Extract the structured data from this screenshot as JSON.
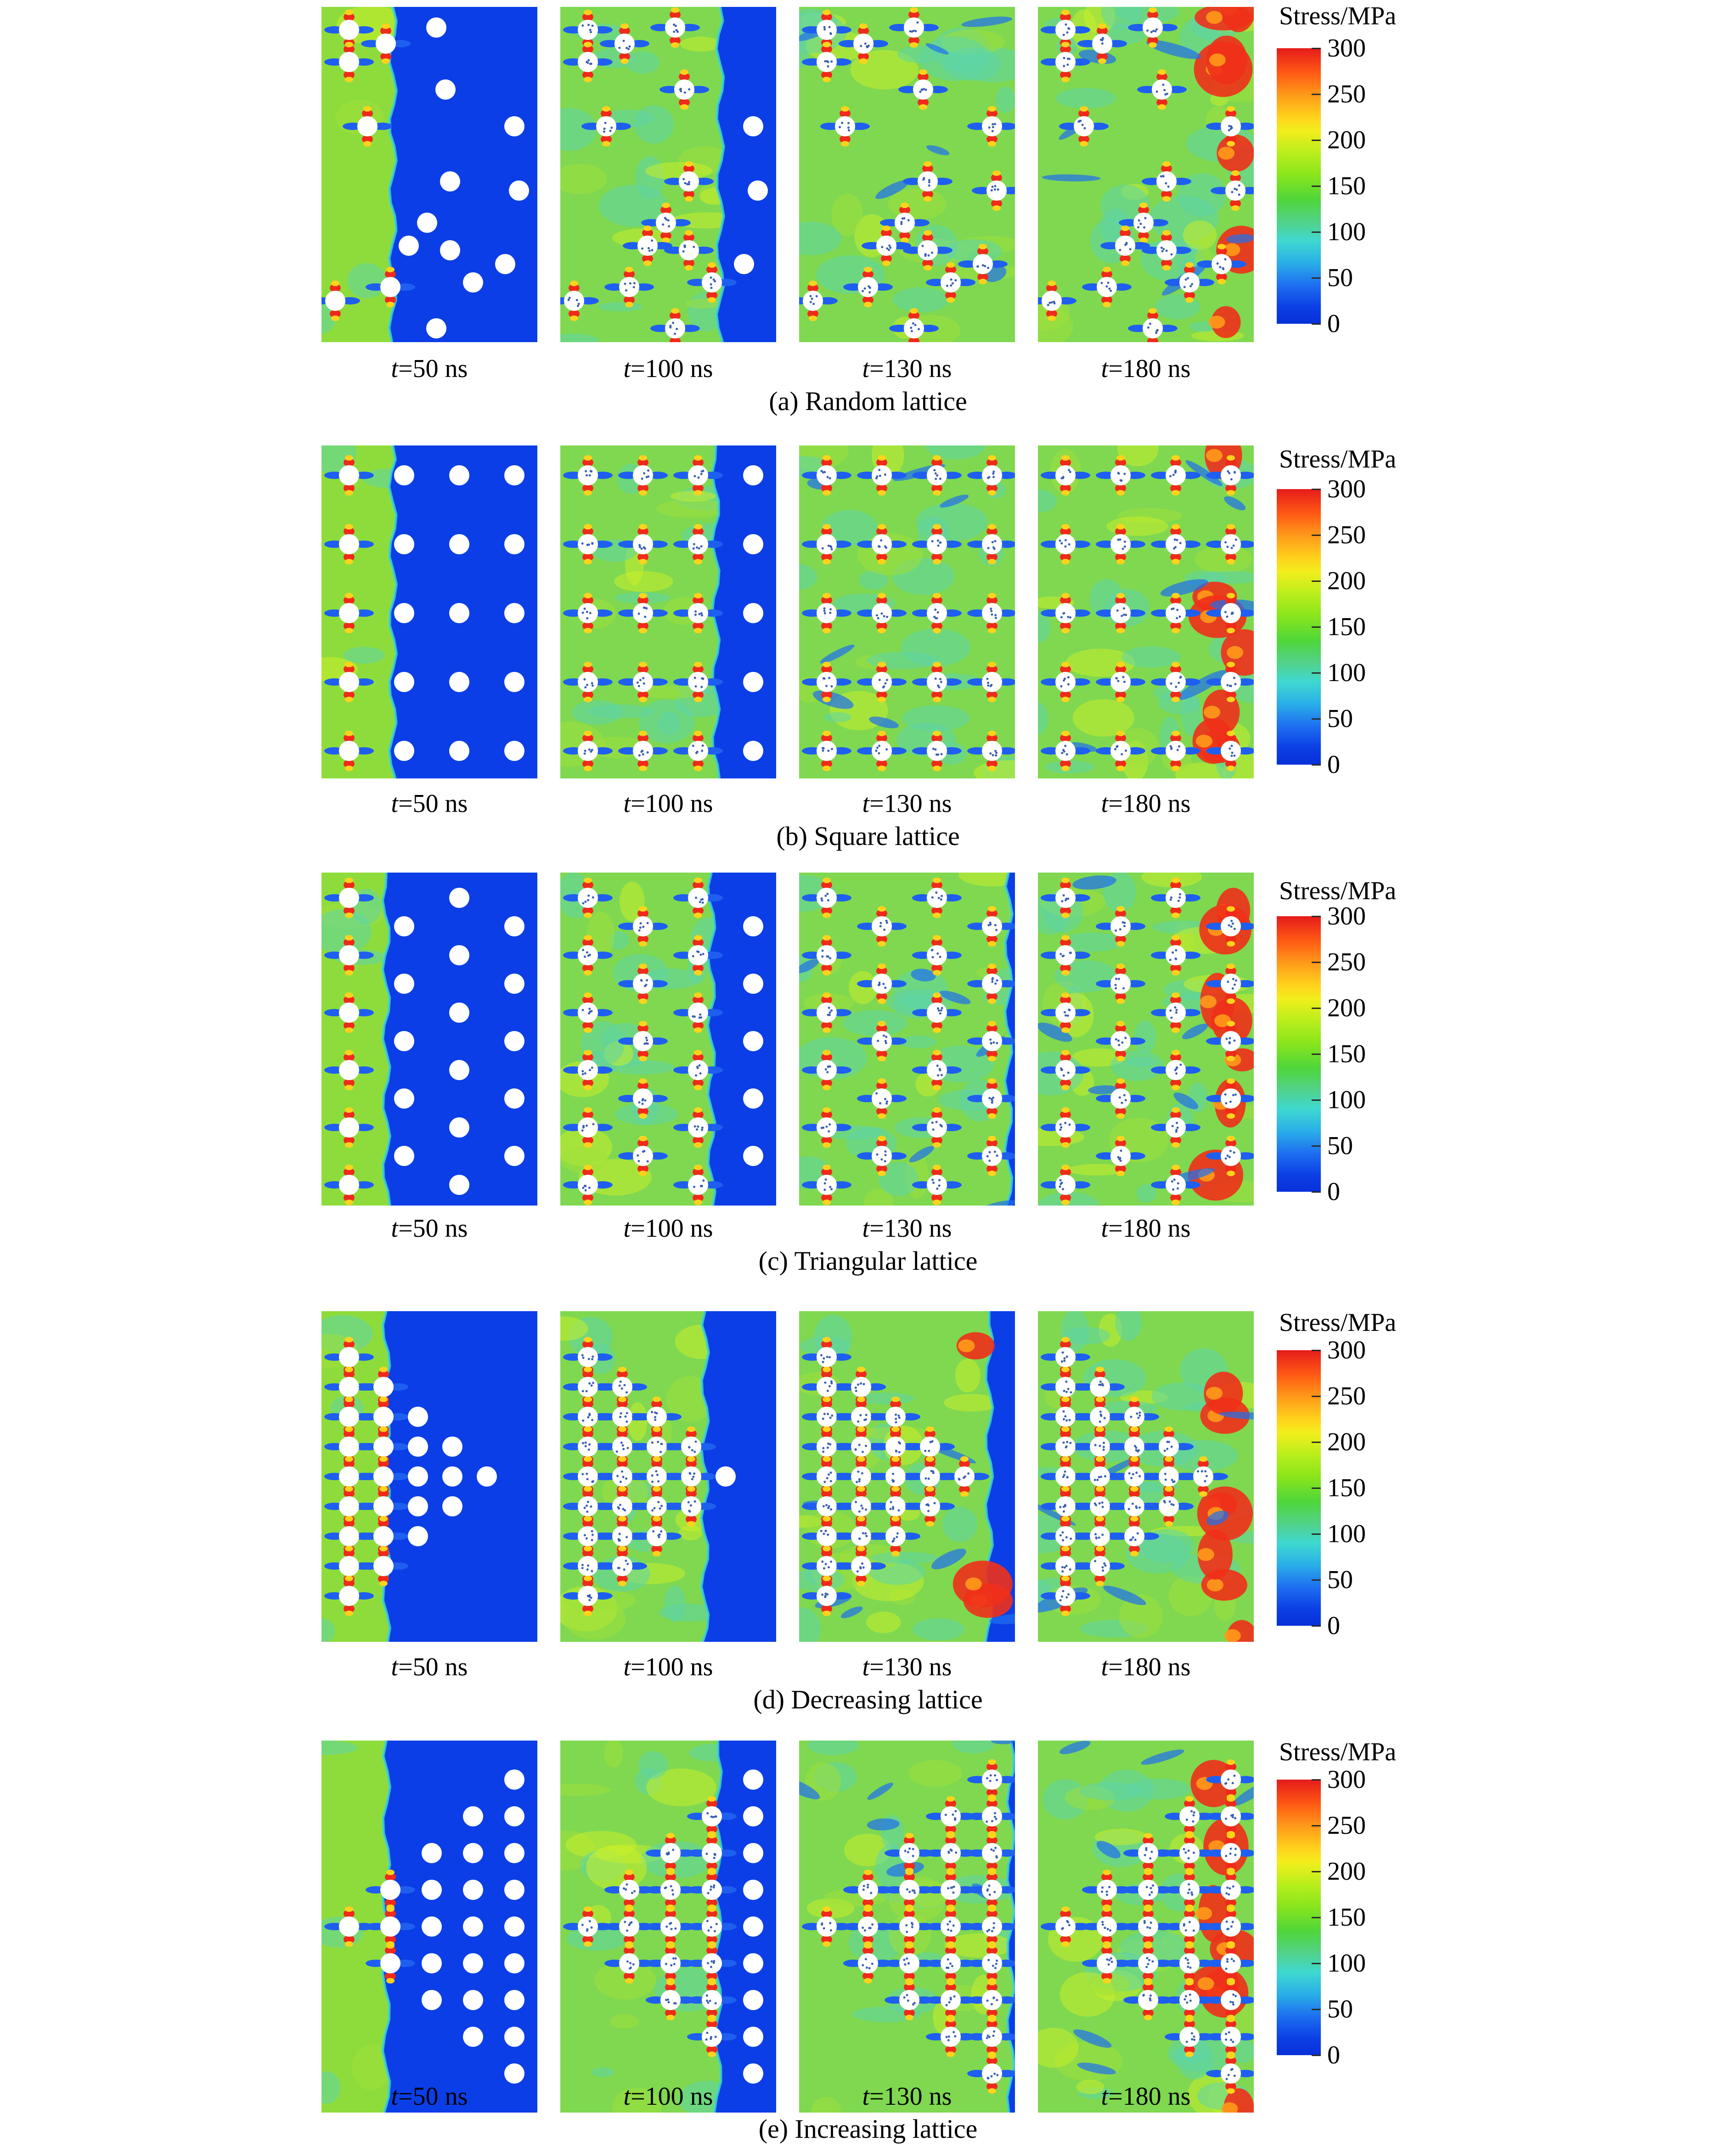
{
  "colorbar": {
    "title": "Stress/MPa",
    "ticks": [
      "300",
      "250",
      "200",
      "150",
      "100",
      "50",
      "0"
    ]
  },
  "rows": [
    {
      "caption": "(a) Random lattice",
      "times": [
        {
          "t": "t",
          "rest": "=50 ns"
        },
        {
          "t": "t",
          "rest": "=100 ns"
        },
        {
          "t": "t",
          "rest": "=130 ns"
        },
        {
          "t": "t",
          "rest": "=180 ns"
        }
      ]
    },
    {
      "caption": "(b) Square lattice",
      "times": [
        {
          "t": "t",
          "rest": "=50 ns"
        },
        {
          "t": "t",
          "rest": "=100 ns"
        },
        {
          "t": "t",
          "rest": "=130 ns"
        },
        {
          "t": "t",
          "rest": "=180 ns"
        }
      ]
    },
    {
      "caption": "(c) Triangular lattice",
      "times": [
        {
          "t": "t",
          "rest": "=50 ns"
        },
        {
          "t": "t",
          "rest": "=100 ns"
        },
        {
          "t": "t",
          "rest": "=130 ns"
        },
        {
          "t": "t",
          "rest": "=180 ns"
        }
      ]
    },
    {
      "caption": "(d) Decreasing lattice",
      "times": [
        {
          "t": "t",
          "rest": "=50 ns"
        },
        {
          "t": "t",
          "rest": "=100 ns"
        },
        {
          "t": "t",
          "rest": "=130 ns"
        },
        {
          "t": "t",
          "rest": "=180 ns"
        }
      ]
    },
    {
      "caption": "(e) Increasing lattice",
      "times": [
        {
          "t": "t",
          "rest": "=50 ns"
        },
        {
          "t": "t",
          "rest": "=100 ns"
        },
        {
          "t": "t",
          "rest": "=130 ns"
        },
        {
          "t": "t",
          "rest": "=180 ns"
        }
      ]
    }
  ]
}
